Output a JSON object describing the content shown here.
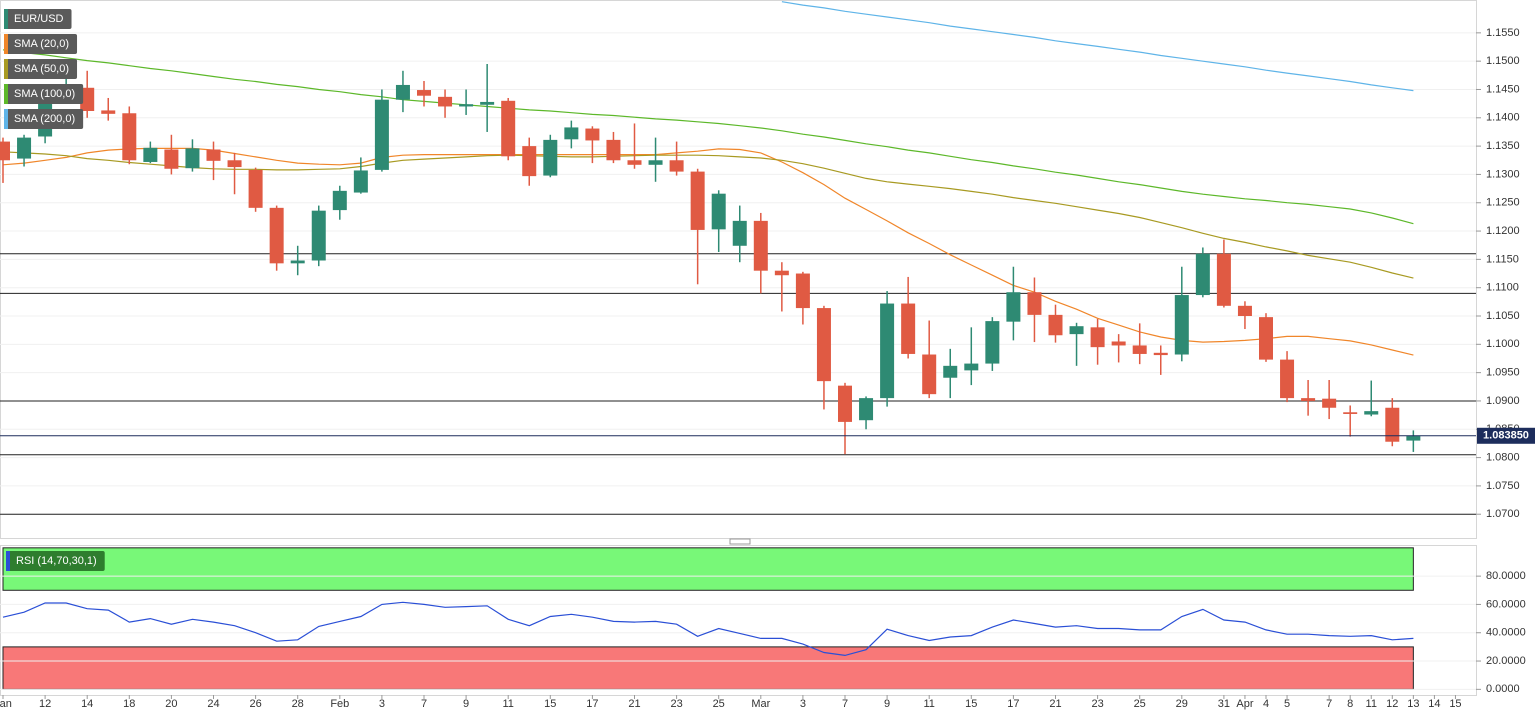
{
  "chart_data": [
    {
      "type": "candlestick",
      "symbol": "EUR/USD",
      "up_color": "#2e8a73",
      "down_color": "#e05a43",
      "ylim": [
        1.0658,
        1.1608
      ],
      "yticks": [
        {
          "value": 1.07,
          "label": "1.0700"
        },
        {
          "value": 1.075,
          "label": "1.0750"
        },
        {
          "value": 1.08,
          "label": "1.0800"
        },
        {
          "value": 1.085,
          "label": "1.0850"
        },
        {
          "value": 1.09,
          "label": "1.0900"
        },
        {
          "value": 1.095,
          "label": "1.0950"
        },
        {
          "value": 1.1,
          "label": "1.1000"
        },
        {
          "value": 1.105,
          "label": "1.1050"
        },
        {
          "value": 1.11,
          "label": "1.1100"
        },
        {
          "value": 1.115,
          "label": "1.1150"
        },
        {
          "value": 1.12,
          "label": "1.1200"
        },
        {
          "value": 1.125,
          "label": "1.1250"
        },
        {
          "value": 1.13,
          "label": "1.1300"
        },
        {
          "value": 1.135,
          "label": "1.1350"
        },
        {
          "value": 1.14,
          "label": "1.1400"
        },
        {
          "value": 1.145,
          "label": "1.1450"
        },
        {
          "value": 1.15,
          "label": "1.1500"
        },
        {
          "value": 1.155,
          "label": "1.1550"
        }
      ],
      "grid": true,
      "open": [
        1.1358,
        1.1328,
        1.1367,
        1.1441,
        1.1453,
        1.1413,
        1.1408,
        1.1322,
        1.1344,
        1.1311,
        1.1344,
        1.1325,
        1.1308,
        1.1241,
        1.1143,
        1.1148,
        1.1237,
        1.1268,
        1.1308,
        1.1432,
        1.1449,
        1.1437,
        1.142,
        1.1423,
        1.143,
        1.135,
        1.1298,
        1.1362,
        1.1381,
        1.1361,
        1.1325,
        1.1317,
        1.1325,
        1.1305,
        1.1203,
        1.1174,
        1.1218,
        1.113,
        1.1125,
        1.1064,
        1.0927,
        1.0866,
        1.0905,
        1.1072,
        1.0982,
        1.0941,
        1.0954,
        1.0966,
        1.104,
        1.1092,
        1.1052,
        1.1018,
        1.103,
        1.1005,
        1.0998,
        1.0985,
        1.0982,
        1.1087,
        1.116,
        1.1068,
        1.1048,
        1.0973,
        1.0905,
        1.0904,
        1.088,
        1.0876,
        1.0888,
        1.083
      ],
      "high": [
        1.1365,
        1.137,
        1.1454,
        1.1482,
        1.1483,
        1.1435,
        1.142,
        1.1358,
        1.137,
        1.1362,
        1.1358,
        1.1338,
        1.1312,
        1.1245,
        1.1174,
        1.1245,
        1.128,
        1.133,
        1.145,
        1.1483,
        1.1465,
        1.145,
        1.145,
        1.1495,
        1.1435,
        1.1365,
        1.137,
        1.1395,
        1.1385,
        1.1375,
        1.139,
        1.1365,
        1.1358,
        1.131,
        1.1272,
        1.1245,
        1.1232,
        1.1145,
        1.1128,
        1.1068,
        1.0932,
        1.0908,
        1.1094,
        1.1119,
        1.1042,
        1.0992,
        1.103,
        1.1048,
        1.1137,
        1.1118,
        1.107,
        1.1038,
        1.1045,
        1.1018,
        1.1037,
        1.0998,
        1.1137,
        1.1171,
        1.1185,
        1.1076,
        1.1055,
        1.0988,
        1.0937,
        1.0937,
        1.0892,
        1.0936,
        1.0905,
        1.0848
      ],
      "low": [
        1.1285,
        1.1314,
        1.1355,
        1.143,
        1.14,
        1.1395,
        1.1318,
        1.132,
        1.13,
        1.1305,
        1.129,
        1.1265,
        1.1234,
        1.113,
        1.1122,
        1.1138,
        1.122,
        1.1266,
        1.1305,
        1.141,
        1.142,
        1.14,
        1.1405,
        1.1375,
        1.1325,
        1.128,
        1.1295,
        1.1346,
        1.132,
        1.132,
        1.131,
        1.1287,
        1.1298,
        1.1106,
        1.1163,
        1.1145,
        1.109,
        1.1058,
        1.1035,
        1.0885,
        1.0806,
        1.085,
        1.089,
        1.0975,
        1.0905,
        1.0905,
        1.0928,
        1.0953,
        1.1007,
        1.1004,
        1.1003,
        1.0962,
        1.0964,
        1.0968,
        1.0965,
        1.0946,
        1.097,
        1.1083,
        1.1065,
        1.1027,
        1.0969,
        1.0898,
        1.0874,
        1.0868,
        1.0837,
        1.0873,
        1.082,
        1.081
      ],
      "close": [
        1.1325,
        1.1365,
        1.1441,
        1.1455,
        1.1412,
        1.1407,
        1.1325,
        1.1347,
        1.131,
        1.1346,
        1.1324,
        1.1313,
        1.1241,
        1.1143,
        1.1148,
        1.1236,
        1.1271,
        1.1307,
        1.1432,
        1.1458,
        1.1439,
        1.142,
        1.1424,
        1.1428,
        1.1332,
        1.1297,
        1.1361,
        1.1383,
        1.136,
        1.1325,
        1.1317,
        1.1325,
        1.1305,
        1.1202,
        1.1266,
        1.1218,
        1.113,
        1.1122,
        1.1064,
        1.0935,
        1.0863,
        1.0905,
        1.1072,
        1.0983,
        1.0912,
        1.0962,
        1.0966,
        1.1041,
        1.1092,
        1.1052,
        1.1016,
        1.1032,
        1.0995,
        1.0998,
        1.0983,
        1.0981,
        1.1087,
        1.116,
        1.1068,
        1.105,
        1.0973,
        1.0905,
        1.09,
        1.0888,
        1.0877,
        1.0882,
        1.0828,
        1.0838
      ],
      "overlays": [
        {
          "name": "SMA (20,0)",
          "color": "#f0862a",
          "values": [
            1.1317,
            1.132,
            1.1325,
            1.133,
            1.1338,
            1.1343,
            1.1345,
            1.1346,
            1.1346,
            1.1346,
            1.1343,
            1.1337,
            1.1331,
            1.1325,
            1.132,
            1.1318,
            1.1317,
            1.132,
            1.133,
            1.1334,
            1.1335,
            1.1335,
            1.1335,
            1.1335,
            1.1335,
            1.1335,
            1.1335,
            1.1335,
            1.1335,
            1.1335,
            1.1335,
            1.1335,
            1.1338,
            1.1341,
            1.1345,
            1.1344,
            1.1338,
            1.1322,
            1.1303,
            1.1282,
            1.1258,
            1.1238,
            1.1218,
            1.1197,
            1.1178,
            1.1158,
            1.114,
            1.1122,
            1.1104,
            1.1092,
            1.1076,
            1.1062,
            1.1046,
            1.1034,
            1.1022,
            1.1013,
            1.1007,
            1.1004,
            1.1005,
            1.1007,
            1.101,
            1.1014,
            1.1014,
            1.101,
            1.1006,
            1.0999,
            1.099,
            1.0981
          ]
        },
        {
          "name": "SMA (50,0)",
          "color": "#a89a22",
          "values": [
            1.134,
            1.1338,
            1.1336,
            1.1333,
            1.1328,
            1.1325,
            1.1321,
            1.1318,
            1.1315,
            1.1312,
            1.131,
            1.1309,
            1.1309,
            1.1308,
            1.1308,
            1.1309,
            1.131,
            1.1314,
            1.132,
            1.1325,
            1.1327,
            1.1329,
            1.1331,
            1.1333,
            1.1334,
            1.1333,
            1.1332,
            1.1331,
            1.1331,
            1.1332,
            1.1333,
            1.1334,
            1.1334,
            1.1334,
            1.1333,
            1.1331,
            1.1329,
            1.1325,
            1.1319,
            1.1311,
            1.1302,
            1.1293,
            1.1287,
            1.1283,
            1.1279,
            1.1275,
            1.127,
            1.1265,
            1.1259,
            1.1254,
            1.1249,
            1.1243,
            1.1237,
            1.1231,
            1.1224,
            1.1215,
            1.1206,
            1.1196,
            1.1187,
            1.118,
            1.1172,
            1.1165,
            1.1157,
            1.1151,
            1.1145,
            1.1136,
            1.1126,
            1.1117
          ]
        },
        {
          "name": "SMA (100,0)",
          "color": "#5db82a",
          "values": [
            1.152,
            1.1515,
            1.1511,
            1.1506,
            1.1501,
            1.1497,
            1.1492,
            1.1487,
            1.1483,
            1.1478,
            1.1473,
            1.1468,
            1.1464,
            1.1459,
            1.1455,
            1.145,
            1.1446,
            1.1441,
            1.1437,
            1.1432,
            1.1429,
            1.1426,
            1.1423,
            1.142,
            1.1417,
            1.1414,
            1.1412,
            1.1409,
            1.1406,
            1.1404,
            1.1401,
            1.1398,
            1.1396,
            1.1393,
            1.139,
            1.1386,
            1.1382,
            1.1377,
            1.1371,
            1.1366,
            1.136,
            1.1354,
            1.1349,
            1.1343,
            1.1338,
            1.1332,
            1.1326,
            1.1321,
            1.1315,
            1.131,
            1.1304,
            1.1299,
            1.1293,
            1.1287,
            1.1282,
            1.1276,
            1.127,
            1.1265,
            1.1261,
            1.1257,
            1.1254,
            1.125,
            1.1247,
            1.1243,
            1.1239,
            1.1232,
            1.1223,
            1.1213
          ]
        },
        {
          "name": "SMA (200,0)",
          "color": "#5fb4e8",
          "values": [
            null,
            null,
            null,
            null,
            null,
            null,
            null,
            null,
            null,
            null,
            null,
            null,
            null,
            null,
            null,
            null,
            null,
            null,
            null,
            null,
            null,
            null,
            null,
            null,
            null,
            null,
            null,
            null,
            null,
            null,
            null,
            null,
            null,
            null,
            null,
            null,
            null,
            1.1605,
            1.1599,
            1.1594,
            1.1588,
            1.1583,
            1.1578,
            1.1573,
            1.1568,
            1.1562,
            1.1557,
            1.1552,
            1.1547,
            1.1542,
            1.1536,
            1.1531,
            1.1526,
            1.1521,
            1.1516,
            1.151,
            1.1505,
            1.15,
            1.1495,
            1.149,
            1.1484,
            1.1479,
            1.1474,
            1.1469,
            1.1464,
            1.1458,
            1.1453,
            1.1448
          ]
        }
      ],
      "levels": [
        1.116,
        1.109,
        1.09,
        1.0805,
        1.07
      ],
      "level_color": "#222222",
      "last_price": {
        "value": 1.08385,
        "label": "1.083850"
      },
      "last_price_color": "#1d2d5c"
    },
    {
      "type": "line",
      "categories": [
        "Jan",
        null,
        "12",
        null,
        "14",
        null,
        "18",
        null,
        "20",
        null,
        "24",
        null,
        "26",
        null,
        "28",
        null,
        "Feb",
        null,
        "3",
        null,
        "7",
        null,
        "9",
        null,
        "11",
        null,
        "15",
        null,
        "17",
        null,
        "21",
        null,
        "23",
        null,
        "25",
        null,
        "Mar",
        null,
        "3",
        null,
        "7",
        null,
        "9",
        null,
        "11",
        null,
        "15",
        null,
        "17",
        null,
        "21",
        null,
        "23",
        null,
        "25",
        null,
        "29",
        null,
        "31",
        "Apr",
        "4",
        "5",
        null,
        "7",
        "8",
        "11",
        "12",
        "13",
        "14",
        "15"
      ],
      "ylim": [
        -4,
        102
      ],
      "yticks": [
        {
          "value": 0,
          "label": "0.0000"
        },
        {
          "value": 20,
          "label": "20.0000"
        },
        {
          "value": 40,
          "label": "40.0000"
        },
        {
          "value": 60,
          "label": "60.0000"
        },
        {
          "value": 80,
          "label": "80.0000"
        }
      ],
      "grid": true,
      "series": [
        {
          "name": "RSI (14,70,30,1)",
          "color": "#2a4fd6",
          "values": [
            51,
            54.5,
            61,
            61,
            57,
            56,
            47.5,
            50,
            46,
            49.5,
            47.5,
            45,
            40,
            34,
            35,
            44.5,
            48,
            51.5,
            60,
            61.5,
            60,
            58,
            58.5,
            59,
            49.5,
            45,
            51.5,
            53,
            51,
            48,
            47.5,
            48,
            46,
            37.5,
            43,
            39.5,
            36,
            36,
            32,
            26,
            24,
            28,
            42.5,
            38,
            34.5,
            37,
            38,
            44,
            49,
            46.5,
            44,
            45,
            43,
            43,
            42,
            42,
            51.5,
            56.5,
            49,
            47.5,
            42,
            39,
            39,
            38,
            37.5,
            38,
            35,
            36,
            null,
            null
          ]
        }
      ],
      "zones": [
        {
          "from": 70,
          "to": 100,
          "color": "#78f878"
        },
        {
          "from": 0,
          "to": 30,
          "color": "#f87878"
        }
      ]
    }
  ]
}
